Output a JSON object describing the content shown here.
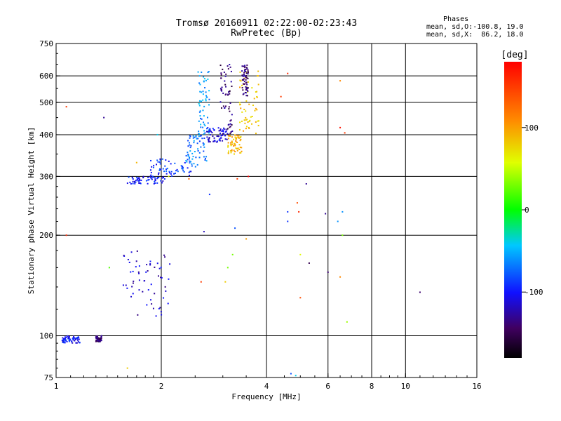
{
  "header": {
    "title": "Tromsø 20160911 02:22:00-02:23:43",
    "subtitle": "RwPretec (Bp)"
  },
  "phases_box": {
    "heading": "Phases",
    "line_o": "mean, sd,O:-100.8, 19.0",
    "line_x": "mean, sd,X:  86.2, 18.0"
  },
  "colorbar": {
    "unit": "[deg]",
    "range": [
      -180,
      180
    ],
    "ticks": [
      "100",
      "0",
      "-100"
    ],
    "tick_values": [
      100,
      0,
      -100
    ]
  },
  "chart_data": {
    "type": "scatter",
    "title": "Tromsø 20160911 02:22:00-02:23:43",
    "subtitle": "RwPretec (Bp)",
    "xlabel": "Frequency [MHz]",
    "ylabel": "Stationary phase Virtual Height [km]",
    "x_scale": "log",
    "y_scale": "log",
    "xlim": [
      1,
      16
    ],
    "ylim": [
      75,
      750
    ],
    "x_ticks": [
      1,
      2,
      4,
      6,
      8,
      10,
      16
    ],
    "x_tick_labels": [
      "1",
      "2",
      "4",
      "6",
      "8",
      "10",
      "16"
    ],
    "y_ticks": [
      75,
      100,
      200,
      300,
      400,
      500,
      600,
      750
    ],
    "y_tick_labels": [
      "75",
      "100",
      "200",
      "300",
      "400",
      "500",
      "600",
      "750"
    ],
    "grid": true,
    "x_grid": [
      2,
      4,
      6,
      8,
      10
    ],
    "y_grid": [
      100,
      200,
      300,
      400,
      500,
      600
    ],
    "color_by": "phase [deg]",
    "traces": [
      {
        "x0": 1.04,
        "x1": 1.17,
        "y0": 95,
        "y1": 100,
        "phase": -100
      },
      {
        "x0": 1.3,
        "x1": 1.35,
        "y0": 96,
        "y1": 100,
        "phase": -140
      },
      {
        "x0": 1.55,
        "x1": 2.12,
        "y0": 112,
        "y1": 180,
        "phase": -115
      },
      {
        "x0": 1.6,
        "x1": 2.05,
        "y0": 285,
        "y1": 300,
        "phase": -100
      },
      {
        "x0": 1.85,
        "x1": 2.45,
        "y0": 300,
        "y1": 340,
        "phase": -90
      },
      {
        "x0": 2.35,
        "x1": 2.7,
        "y0": 320,
        "y1": 400,
        "phase": -70
      },
      {
        "x0": 2.55,
        "x1": 2.75,
        "y0": 400,
        "y1": 620,
        "phase": -60
      },
      {
        "x0": 2.7,
        "x1": 3.1,
        "y0": 380,
        "y1": 420,
        "phase": -110
      },
      {
        "x0": 2.95,
        "x1": 3.2,
        "y0": 400,
        "y1": 650,
        "phase": -140
      },
      {
        "x0": 3.1,
        "x1": 3.4,
        "y0": 350,
        "y1": 400,
        "phase": 90
      },
      {
        "x0": 3.35,
        "x1": 3.8,
        "y0": 400,
        "y1": 620,
        "phase": 85
      },
      {
        "x0": 3.4,
        "x1": 3.55,
        "y0": 520,
        "y1": 650,
        "phase": -140
      }
    ],
    "points": [
      {
        "x": 1.07,
        "y": 485,
        "phase": 150
      },
      {
        "x": 1.37,
        "y": 450,
        "phase": -130
      },
      {
        "x": 1.07,
        "y": 200,
        "phase": 160
      },
      {
        "x": 1.42,
        "y": 160,
        "phase": 20
      },
      {
        "x": 1.6,
        "y": 80,
        "phase": 80
      },
      {
        "x": 1.7,
        "y": 330,
        "phase": 90
      },
      {
        "x": 1.95,
        "y": 400,
        "phase": -40
      },
      {
        "x": 2.1,
        "y": 300,
        "phase": 60
      },
      {
        "x": 2.4,
        "y": 295,
        "phase": 130
      },
      {
        "x": 2.65,
        "y": 205,
        "phase": -120
      },
      {
        "x": 2.75,
        "y": 265,
        "phase": -90
      },
      {
        "x": 2.6,
        "y": 145,
        "phase": 150
      },
      {
        "x": 3.25,
        "y": 210,
        "phase": -80
      },
      {
        "x": 3.3,
        "y": 295,
        "phase": 150
      },
      {
        "x": 3.05,
        "y": 145,
        "phase": 80
      },
      {
        "x": 3.1,
        "y": 160,
        "phase": 30
      },
      {
        "x": 3.2,
        "y": 175,
        "phase": 30
      },
      {
        "x": 3.5,
        "y": 195,
        "phase": 100
      },
      {
        "x": 3.55,
        "y": 300,
        "phase": 180
      },
      {
        "x": 4.4,
        "y": 520,
        "phase": 150
      },
      {
        "x": 4.6,
        "y": 610,
        "phase": 160
      },
      {
        "x": 4.6,
        "y": 235,
        "phase": -90
      },
      {
        "x": 4.6,
        "y": 220,
        "phase": -90
      },
      {
        "x": 4.9,
        "y": 250,
        "phase": 140
      },
      {
        "x": 4.95,
        "y": 235,
        "phase": 160
      },
      {
        "x": 5.2,
        "y": 285,
        "phase": -130
      },
      {
        "x": 5.0,
        "y": 175,
        "phase": 60
      },
      {
        "x": 5.3,
        "y": 165,
        "phase": -150
      },
      {
        "x": 5.9,
        "y": 232,
        "phase": -130
      },
      {
        "x": 6.0,
        "y": 155,
        "phase": -140
      },
      {
        "x": 5.0,
        "y": 130,
        "phase": 140
      },
      {
        "x": 6.5,
        "y": 420,
        "phase": 170
      },
      {
        "x": 6.7,
        "y": 405,
        "phase": 150
      },
      {
        "x": 6.5,
        "y": 580,
        "phase": 110
      },
      {
        "x": 6.6,
        "y": 235,
        "phase": -60
      },
      {
        "x": 6.4,
        "y": 220,
        "phase": -60
      },
      {
        "x": 6.6,
        "y": 200,
        "phase": 30
      },
      {
        "x": 6.5,
        "y": 150,
        "phase": 110
      },
      {
        "x": 6.8,
        "y": 110,
        "phase": 40
      },
      {
        "x": 4.7,
        "y": 77,
        "phase": -80
      },
      {
        "x": 4.85,
        "y": 76,
        "phase": -40
      },
      {
        "x": 11.0,
        "y": 135,
        "phase": -140
      }
    ]
  }
}
